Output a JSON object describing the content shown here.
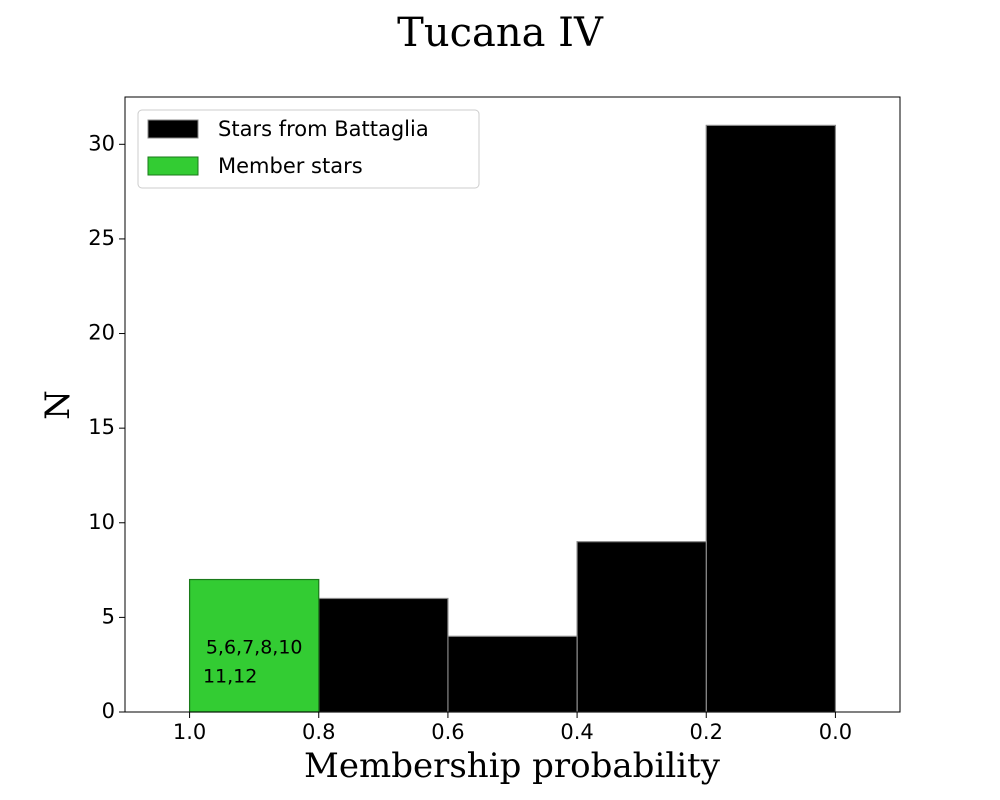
{
  "chart_data": {
    "type": "histogram",
    "title": "Tucana IV",
    "xlabel": "Membership probability",
    "ylabel": "N",
    "series": [
      {
        "name": "Stars from Battaglia",
        "color": "#000000",
        "bins": [
          0.0,
          0.2,
          0.4,
          0.6,
          0.8
        ],
        "counts": [
          31,
          9,
          4,
          6
        ]
      },
      {
        "name": "Member stars",
        "color": "#33cc33",
        "bins": [
          0.8,
          1.0
        ],
        "counts": [
          7
        ]
      }
    ],
    "annotation": [
      "5,6,7,8,10",
      "11,12"
    ],
    "xlim": [
      1.1,
      -0.1
    ],
    "xticks": [
      {
        "value": 1.0,
        "label": "1.0"
      },
      0.8,
      0.6,
      0.4,
      0.2,
      {
        "value": 0.0,
        "label": "0.0"
      }
    ],
    "ylim": [
      0,
      32.5
    ],
    "yticks": [
      0,
      5,
      10,
      15,
      20,
      25,
      30
    ],
    "legend": "upper-left"
  }
}
